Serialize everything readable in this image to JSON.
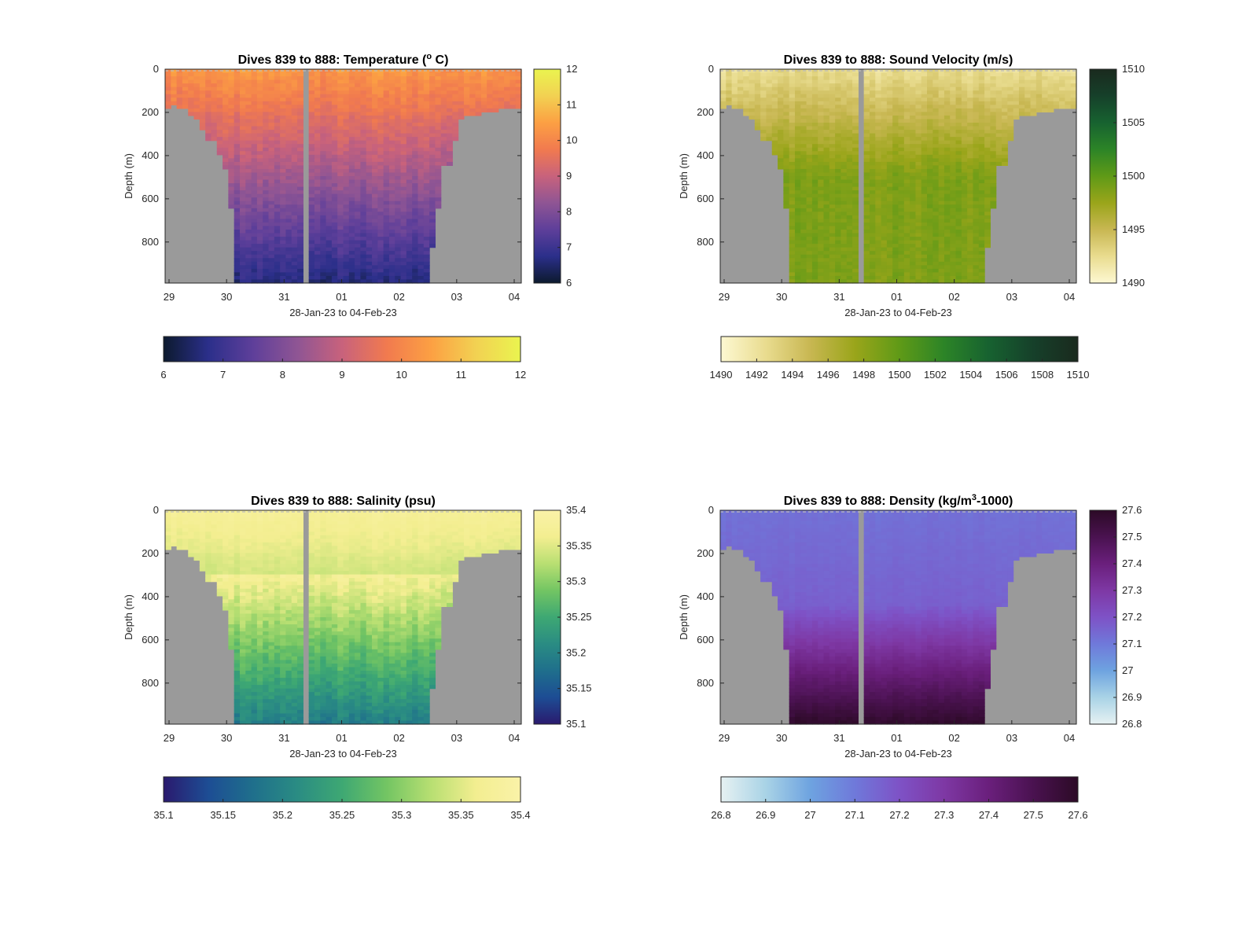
{
  "chart_data": [
    {
      "type": "heatmap",
      "title": "Dives 839 to 888: Temperature (° C)",
      "title_prefix": "Dives 839 to 888: Temperature (",
      "title_sup": "o",
      "title_suffix": " C)",
      "xlabel": "28-Jan-23 to 04-Feb-23",
      "ylabel": "Depth (m)",
      "x_ticks": [
        "29",
        "30",
        "31",
        "01",
        "02",
        "03",
        "04"
      ],
      "y_ticks": [
        0,
        200,
        400,
        600,
        800
      ],
      "ylim": [
        0,
        990
      ],
      "y_reversed": true,
      "colormap": [
        "#0c1a2e",
        "#2b2f8a",
        "#5e3f9a",
        "#8f5594",
        "#c8627c",
        "#f17a4f",
        "#fca043",
        "#f2d152",
        "#eaf44f"
      ],
      "clim": [
        6,
        12
      ],
      "side_cbar_ticks": [
        "12",
        "11",
        "10",
        "9",
        "8",
        "7",
        "6"
      ],
      "bottom_cbar_ticks": [
        "6",
        "7",
        "8",
        "9",
        "10",
        "11",
        "12"
      ],
      "accent_shallow": "#f8903f",
      "accent_mid": "#d86566",
      "accent_deep": "#322c9a"
    },
    {
      "type": "heatmap",
      "title": "Dives 839 to 888: Sound Velocity (m/s)",
      "title_prefix": "Dives 839 to 888: Sound Velocity (m/s)",
      "title_sup": "",
      "title_suffix": "",
      "xlabel": "28-Jan-23 to 04-Feb-23",
      "ylabel": "Depth (m)",
      "x_ticks": [
        "29",
        "30",
        "31",
        "01",
        "02",
        "03",
        "04"
      ],
      "y_ticks": [
        0,
        200,
        400,
        600,
        800
      ],
      "ylim": [
        0,
        990
      ],
      "y_reversed": true,
      "colormap": [
        "#fdf8d2",
        "#e9dc8f",
        "#c8b752",
        "#9aa51a",
        "#5f9a17",
        "#2c8427",
        "#176230",
        "#16402a",
        "#1a2a1e"
      ],
      "clim": [
        1490,
        1510
      ],
      "side_cbar_ticks": [
        "1510",
        "1505",
        "1500",
        "1495",
        "1490"
      ],
      "bottom_cbar_ticks": [
        "1490",
        "1492",
        "1494",
        "1496",
        "1498",
        "1500",
        "1502",
        "1504",
        "1506",
        "1508",
        "1510"
      ],
      "accent_shallow": "#e2d690",
      "accent_mid": "#98a824",
      "accent_deep": "#7aa21c"
    },
    {
      "type": "heatmap",
      "title": "Dives 839 to 888: Salinity (psu)",
      "title_prefix": "Dives 839 to 888: Salinity (psu)",
      "title_sup": "",
      "title_suffix": "",
      "xlabel": "28-Jan-23 to 04-Feb-23",
      "ylabel": "Depth (m)",
      "x_ticks": [
        "29",
        "30",
        "31",
        "01",
        "02",
        "03",
        "04"
      ],
      "y_ticks": [
        0,
        200,
        400,
        600,
        800
      ],
      "ylim": [
        0,
        990
      ],
      "y_reversed": true,
      "colormap": [
        "#2a1a6e",
        "#1d4d94",
        "#1f6f8c",
        "#2a8c83",
        "#3ea873",
        "#73c563",
        "#b8df72",
        "#f3ee90",
        "#faf2a8"
      ],
      "clim": [
        35.1,
        35.4
      ],
      "side_cbar_ticks": [
        "35.4",
        "35.35",
        "35.3",
        "35.25",
        "35.2",
        "35.15",
        "35.1"
      ],
      "bottom_cbar_ticks": [
        "35.1",
        "35.15",
        "35.2",
        "35.25",
        "35.3",
        "35.35",
        "35.4"
      ],
      "accent_shallow": "#f5ec96",
      "accent_mid": "#a3d86a",
      "accent_deep": "#49ad72"
    },
    {
      "type": "heatmap",
      "title": "Dives 839 to 888: Density (kg/m³-1000)",
      "title_prefix": "Dives 839 to 888: Density (kg/m",
      "title_sup": "3",
      "title_suffix": "-1000)",
      "xlabel": "28-Jan-23 to 04-Feb-23",
      "ylabel": "Depth (m)",
      "x_ticks": [
        "29",
        "30",
        "31",
        "01",
        "02",
        "03",
        "04"
      ],
      "y_ticks": [
        0,
        200,
        400,
        600,
        800
      ],
      "ylim": [
        0,
        990
      ],
      "y_reversed": true,
      "colormap": [
        "#e6f1f2",
        "#a9d3e6",
        "#6ea3e0",
        "#6f79da",
        "#7e52c6",
        "#7e38a4",
        "#6a1f7c",
        "#4a1250",
        "#2c0a26"
      ],
      "clim": [
        26.8,
        27.6
      ],
      "side_cbar_ticks": [
        "27.6",
        "27.5",
        "27.4",
        "27.3",
        "27.2",
        "27.1",
        "27",
        "26.9",
        "26.8"
      ],
      "bottom_cbar_ticks": [
        "26.8",
        "26.9",
        "27",
        "27.1",
        "27.2",
        "27.3",
        "27.4",
        "27.5",
        "27.6"
      ],
      "accent_shallow": "#7379da",
      "accent_mid": "#7a4cc3",
      "accent_deep": "#4a1250"
    }
  ],
  "colors": {
    "no_data_gray": "#9a9a9a",
    "axis": "#262626",
    "background": "#ffffff"
  }
}
